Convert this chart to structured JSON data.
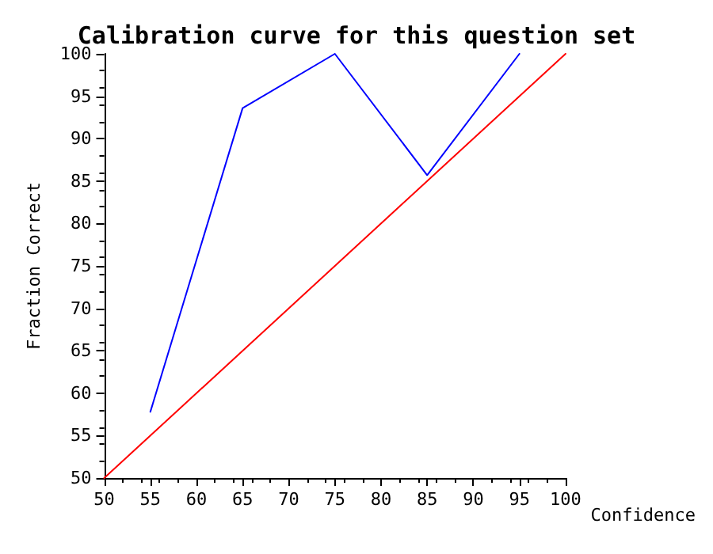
{
  "chart_data": {
    "type": "line",
    "title": "Calibration curve for this question set",
    "xlabel": "Confidence",
    "ylabel": "Fraction Correct",
    "series": [
      {
        "color": "#0000ff",
        "x": [
          55,
          65,
          75,
          85,
          95
        ],
        "values": [
          57.8,
          93.6,
          100,
          85.7,
          100
        ]
      },
      {
        "color": "#ff0000",
        "x": [
          50,
          100
        ],
        "values": [
          50,
          100
        ]
      }
    ],
    "xlim": [
      50,
      100
    ],
    "xticks": [
      50,
      55,
      60,
      65,
      70,
      75,
      80,
      85,
      90,
      95,
      100
    ],
    "ylim": [
      50,
      100
    ],
    "yticks": [
      50,
      55,
      60,
      65,
      70,
      75,
      80,
      85,
      90,
      95,
      100
    ],
    "grid": false,
    "marker": "none",
    "line_style": "solid"
  }
}
